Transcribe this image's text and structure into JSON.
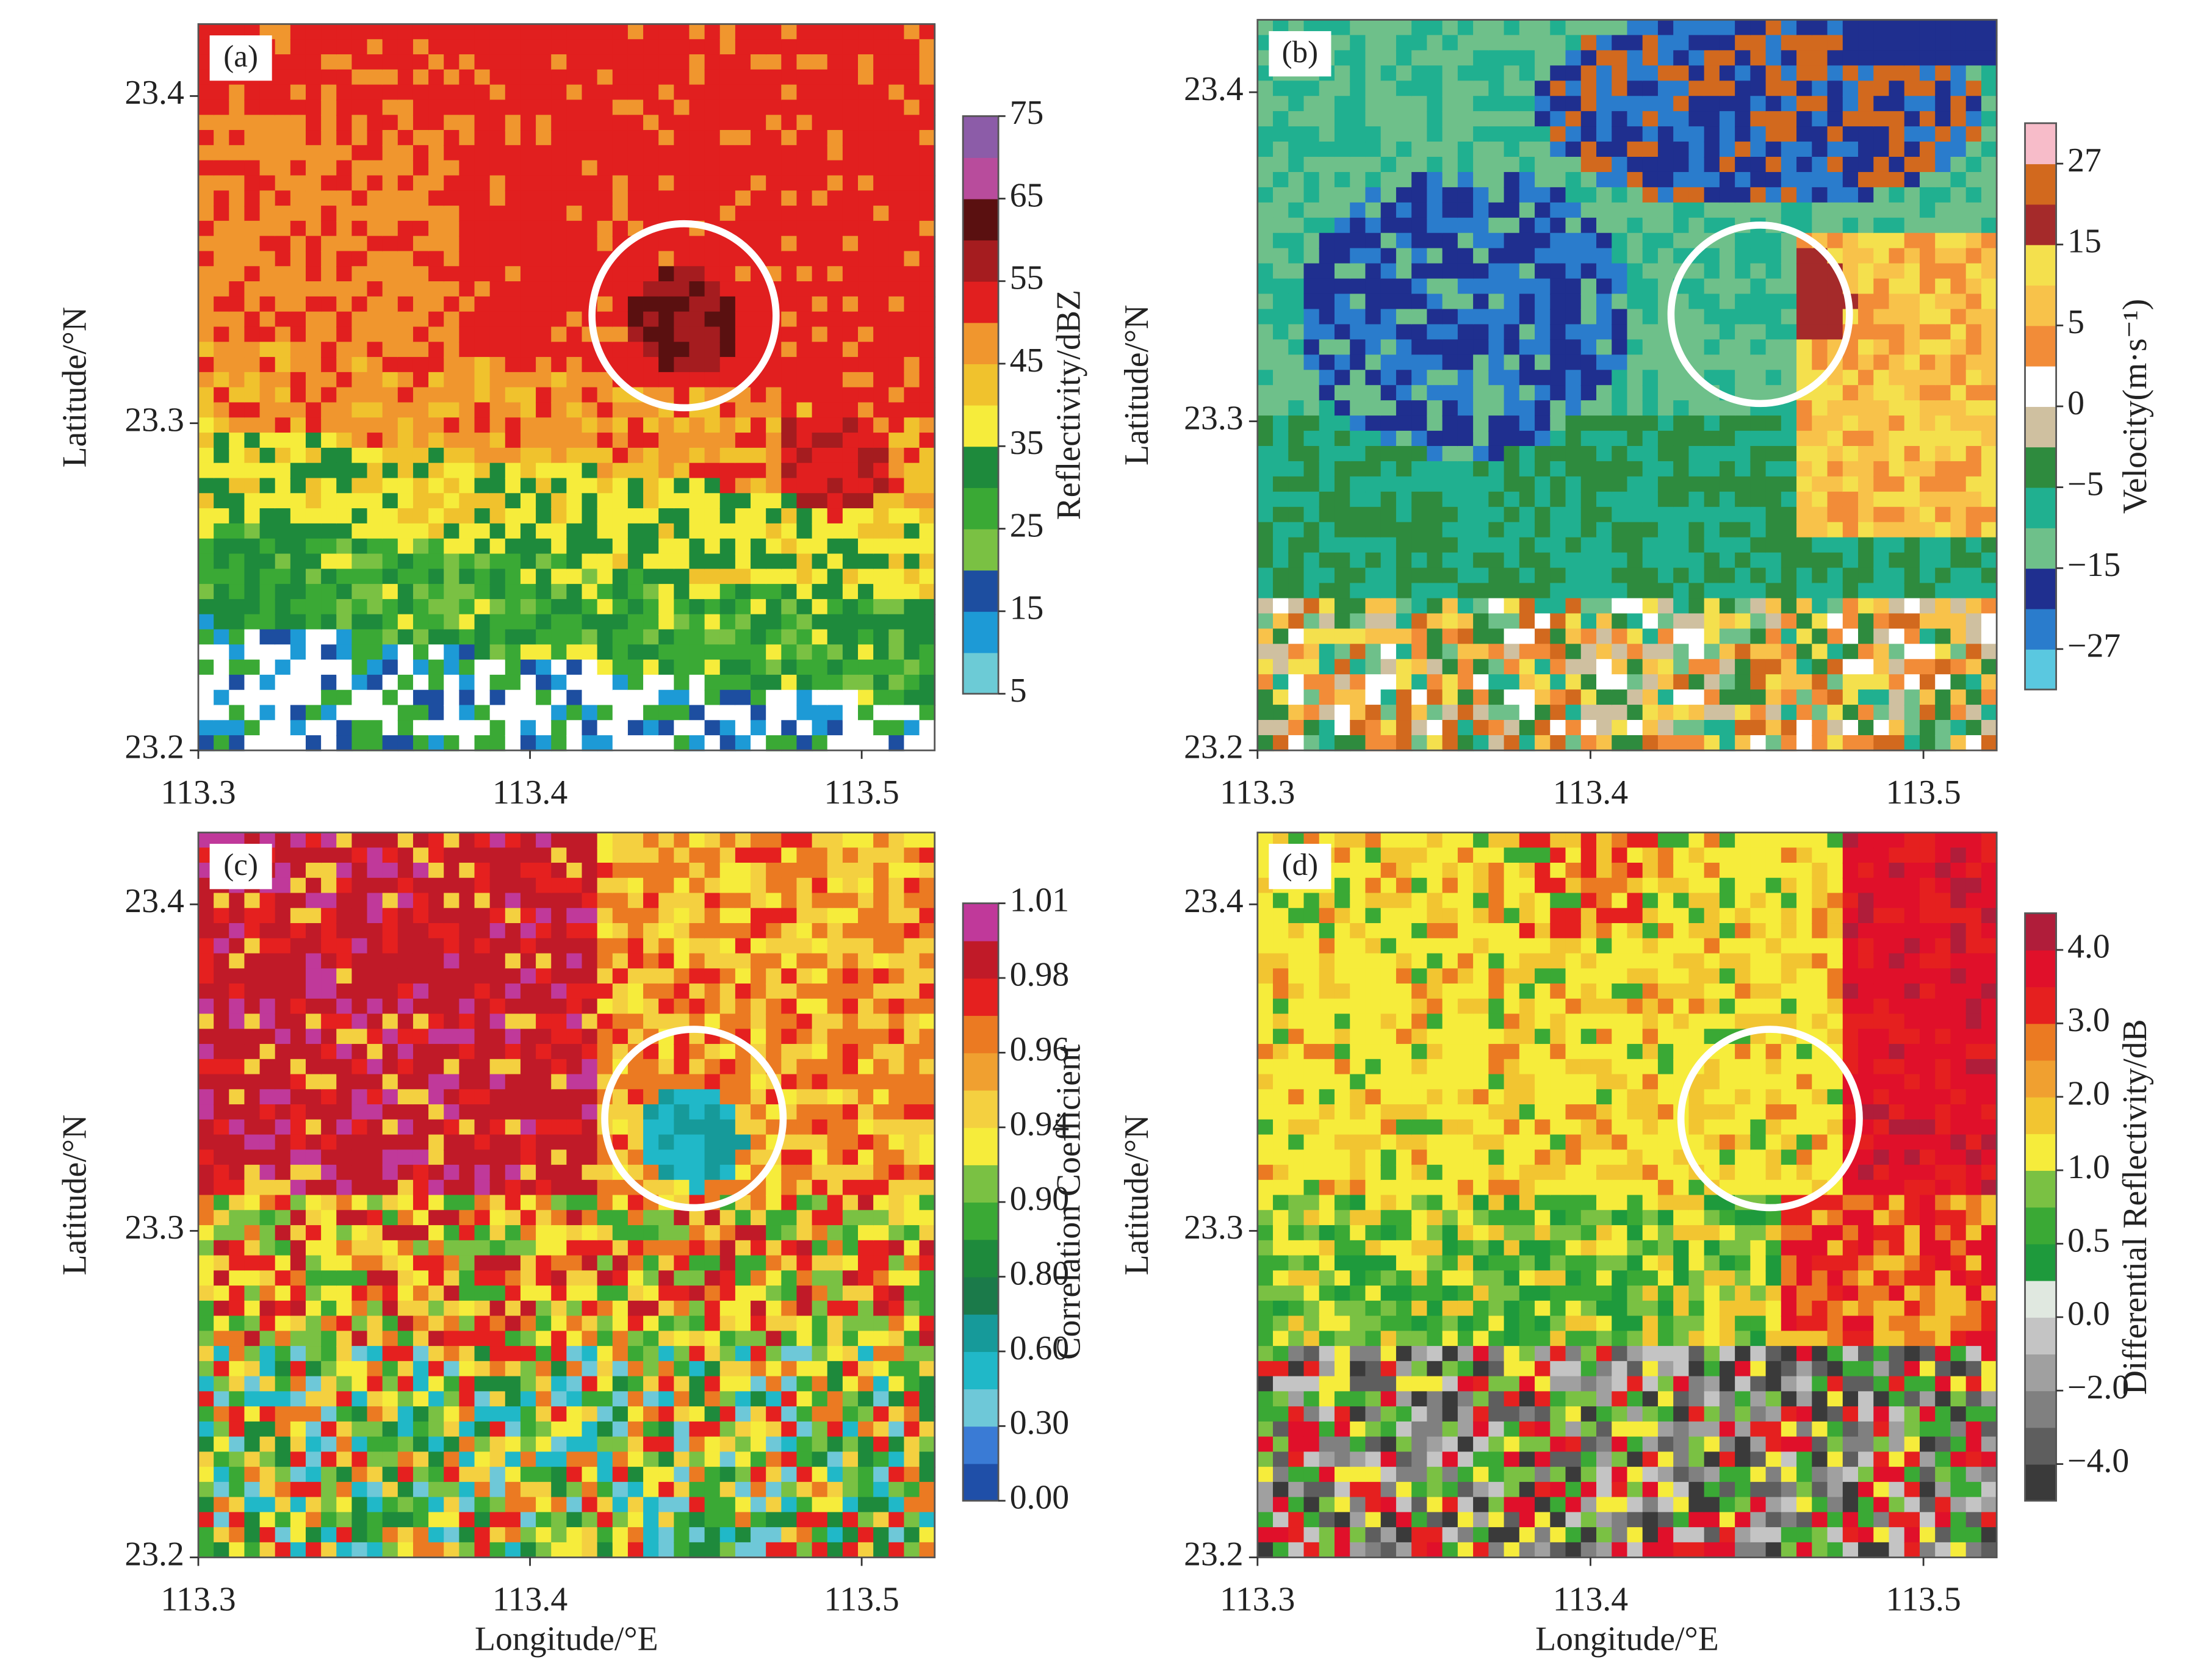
{
  "chart_data": [
    {
      "type": "heatmap",
      "panel_label": "(a)",
      "y_label": "Latitude/°N",
      "xlim": [
        113.3,
        113.522
      ],
      "xticks": [
        113.3,
        113.4,
        113.5
      ],
      "ylim": [
        23.2,
        23.422
      ],
      "yticks": [
        23.2,
        23.3,
        23.4
      ],
      "colorbar": {
        "label": "Reflectivity/dBZ",
        "colors": [
          "#6ccbd6",
          "#1d9ad6",
          "#1d4ea0",
          "#7ac143",
          "#3aa935",
          "#1e8a3c",
          "#f6ec3b",
          "#f0c22d",
          "#f0962e",
          "#e11f1f",
          "#a51c1f",
          "#5a1010",
          "#b84c9c",
          "#8c5ca8"
        ],
        "ticks": [
          5,
          15,
          25,
          35,
          45,
          55,
          65,
          75
        ]
      }
    },
    {
      "type": "heatmap",
      "panel_label": "(b)",
      "y_label": "Latitude/°N",
      "xlim": [
        113.3,
        113.522
      ],
      "xticks": [
        113.3,
        113.4,
        113.5
      ],
      "ylim": [
        23.2,
        23.422
      ],
      "yticks": [
        23.2,
        23.3,
        23.4
      ],
      "colorbar": {
        "label": "Velocity(m·s⁻¹)",
        "colors": [
          "#5ac8e0",
          "#2a7ccc",
          "#1f2f8f",
          "#6ec08a",
          "#20b090",
          "#2e8b3e",
          "#cfc0a0",
          "#ffffff",
          "#f28c38",
          "#f8c24a",
          "#f4e04d",
          "#a52a2a",
          "#d2691e",
          "#f7bcc9"
        ],
        "ticks": [
          {
            "value": -27,
            "label": "−27"
          },
          {
            "value": -15,
            "label": "−15"
          },
          {
            "value": -5,
            "label": "−5"
          },
          0,
          5,
          15,
          27
        ]
      }
    },
    {
      "type": "heatmap",
      "panel_label": "(c)",
      "y_label": "Latitude/°N",
      "x_label": "Longitude/°E",
      "xlim": [
        113.3,
        113.522
      ],
      "xticks": [
        113.3,
        113.4,
        113.5
      ],
      "ylim": [
        23.2,
        23.422
      ],
      "yticks": [
        23.2,
        23.3,
        23.4
      ],
      "colorbar": {
        "label": "Correlation Coefficient",
        "colors": [
          "#1f4fa8",
          "#3a7bd5",
          "#6ec8d8",
          "#20b8c8",
          "#169a9a",
          "#1b7a4a",
          "#1e8a3c",
          "#3aa935",
          "#7ac143",
          "#f6ec3b",
          "#f4d040",
          "#f0a030",
          "#eb7a22",
          "#e5201f",
          "#c01a28",
          "#c0399a"
        ],
        "ticks": [
          {
            "value": 0,
            "label": "0.00"
          },
          {
            "value": 0.3,
            "label": "0.30"
          },
          {
            "value": 0.6,
            "label": "0.60"
          },
          {
            "value": 0.8,
            "label": "0.80"
          },
          {
            "value": 0.9,
            "label": "0.90"
          },
          0.94,
          0.96,
          0.98,
          1.01
        ]
      }
    },
    {
      "type": "heatmap",
      "panel_label": "(d)",
      "y_label": "Latitude/°N",
      "x_label": "Longitude/°E",
      "xlim": [
        113.3,
        113.522
      ],
      "xticks": [
        113.3,
        113.4,
        113.5
      ],
      "ylim": [
        23.2,
        23.422
      ],
      "yticks": [
        23.2,
        23.3,
        23.4
      ],
      "colorbar": {
        "label": "Differential Reflectivity/dB",
        "colors": [
          "#3a3a3a",
          "#5e5e5e",
          "#808080",
          "#a0a0a0",
          "#c4c4c4",
          "#e0e8e0",
          "#1e9a3c",
          "#3aa935",
          "#7ac143",
          "#f6ec3b",
          "#f2c531",
          "#f0a030",
          "#eb7a22",
          "#e5201f",
          "#e0102a",
          "#b01d3a"
        ],
        "ticks": [
          {
            "value": -4,
            "label": "−4.0"
          },
          {
            "value": -2,
            "label": "−2.0"
          },
          {
            "value": 0,
            "label": "0.0"
          },
          0.5,
          {
            "value": 1,
            "label": "1.0"
          },
          {
            "value": 2,
            "label": "2.0"
          },
          {
            "value": 3,
            "label": "3.0"
          },
          {
            "value": 4,
            "label": "4.0"
          }
        ]
      }
    }
  ]
}
